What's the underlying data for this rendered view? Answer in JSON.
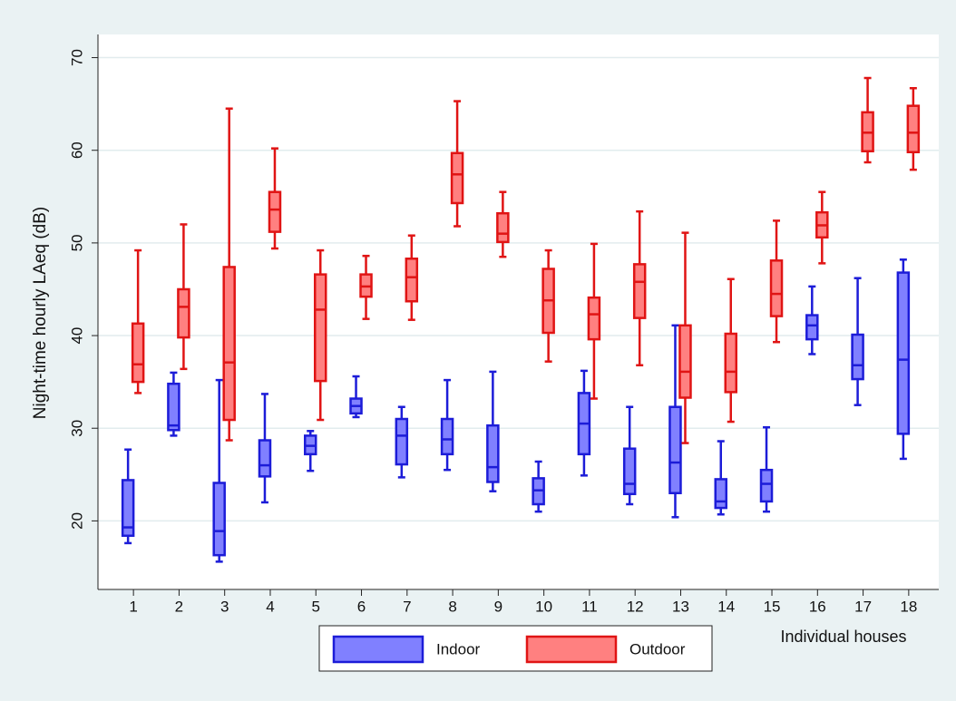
{
  "chart_data": {
    "type": "box",
    "y_label": "Night-time hourly LAeq (dB)",
    "x_label": "Individual houses",
    "categories": [
      "1",
      "2",
      "3",
      "4",
      "5",
      "6",
      "7",
      "8",
      "9",
      "10",
      "11",
      "12",
      "13",
      "14",
      "15",
      "16",
      "17",
      "18"
    ],
    "ylim": [
      12.6,
      72.5
    ],
    "yticks": [
      20,
      30,
      40,
      50,
      60,
      70
    ],
    "grid": true,
    "series": [
      {
        "name": "Indoor",
        "color": "#1c1cd8",
        "fill": "#8080ff",
        "values": [
          {
            "min": 17.6,
            "q1": 18.4,
            "median": 19.3,
            "q3": 24.4,
            "max": 27.7
          },
          {
            "min": 29.2,
            "q1": 29.8,
            "median": 30.3,
            "q3": 34.8,
            "max": 36.0
          },
          {
            "min": 15.6,
            "q1": 16.3,
            "median": 18.9,
            "q3": 24.1,
            "max": 35.2
          },
          {
            "min": 22.0,
            "q1": 24.8,
            "median": 26.0,
            "q3": 28.7,
            "max": 33.7
          },
          {
            "min": 25.4,
            "q1": 27.2,
            "median": 28.1,
            "q3": 29.2,
            "max": 29.7
          },
          {
            "min": 31.2,
            "q1": 31.6,
            "median": 32.4,
            "q3": 33.2,
            "max": 35.6
          },
          {
            "min": 24.7,
            "q1": 26.1,
            "median": 29.2,
            "q3": 31.0,
            "max": 32.3
          },
          {
            "min": 25.5,
            "q1": 27.2,
            "median": 28.8,
            "q3": 31.0,
            "max": 35.2
          },
          {
            "min": 23.2,
            "q1": 24.2,
            "median": 25.8,
            "q3": 30.3,
            "max": 36.1
          },
          {
            "min": 21.0,
            "q1": 21.8,
            "median": 23.3,
            "q3": 24.6,
            "max": 26.4
          },
          {
            "min": 24.9,
            "q1": 27.2,
            "median": 30.5,
            "q3": 33.8,
            "max": 36.2
          },
          {
            "min": 21.8,
            "q1": 22.9,
            "median": 24.0,
            "q3": 27.8,
            "max": 32.3
          },
          {
            "min": 20.4,
            "q1": 23.0,
            "median": 26.3,
            "q3": 32.3,
            "max": 41.1
          },
          {
            "min": 20.7,
            "q1": 21.4,
            "median": 22.1,
            "q3": 24.5,
            "max": 28.6
          },
          {
            "min": 21.0,
            "q1": 22.1,
            "median": 24.0,
            "q3": 25.5,
            "max": 30.1
          },
          {
            "min": 38.0,
            "q1": 39.6,
            "median": 41.1,
            "q3": 42.2,
            "max": 45.3
          },
          {
            "min": 32.5,
            "q1": 35.3,
            "median": 36.8,
            "q3": 40.1,
            "max": 46.2
          },
          {
            "min": 26.7,
            "q1": 29.4,
            "median": 37.4,
            "q3": 46.8,
            "max": 48.2
          }
        ]
      },
      {
        "name": "Outdoor",
        "color": "#e01414",
        "fill": "#ff8080",
        "values": [
          {
            "min": 33.8,
            "q1": 35.0,
            "median": 36.9,
            "q3": 41.3,
            "max": 49.2
          },
          {
            "min": 36.4,
            "q1": 39.8,
            "median": 43.1,
            "q3": 45.0,
            "max": 52.0
          },
          {
            "min": 28.7,
            "q1": 30.9,
            "median": 37.1,
            "q3": 47.4,
            "max": 64.5
          },
          {
            "min": 49.4,
            "q1": 51.2,
            "median": 53.6,
            "q3": 55.5,
            "max": 60.2
          },
          {
            "min": 30.9,
            "q1": 35.1,
            "median": 42.8,
            "q3": 46.6,
            "max": 49.2
          },
          {
            "min": 41.8,
            "q1": 44.2,
            "median": 45.3,
            "q3": 46.6,
            "max": 48.6
          },
          {
            "min": 41.7,
            "q1": 43.7,
            "median": 46.3,
            "q3": 48.3,
            "max": 50.8
          },
          {
            "min": 51.8,
            "q1": 54.3,
            "median": 57.4,
            "q3": 59.7,
            "max": 65.3
          },
          {
            "min": 48.5,
            "q1": 50.1,
            "median": 51.0,
            "q3": 53.2,
            "max": 55.5
          },
          {
            "min": 37.2,
            "q1": 40.3,
            "median": 43.8,
            "q3": 47.2,
            "max": 49.2
          },
          {
            "min": 33.2,
            "q1": 39.6,
            "median": 42.3,
            "q3": 44.1,
            "max": 49.9
          },
          {
            "min": 36.8,
            "q1": 41.9,
            "median": 45.8,
            "q3": 47.7,
            "max": 53.4
          },
          {
            "min": 28.4,
            "q1": 33.3,
            "median": 36.1,
            "q3": 41.1,
            "max": 51.1
          },
          {
            "min": 30.7,
            "q1": 33.9,
            "median": 36.1,
            "q3": 40.2,
            "max": 46.1
          },
          {
            "min": 39.3,
            "q1": 42.1,
            "median": 44.5,
            "q3": 48.1,
            "max": 52.4
          },
          {
            "min": 47.8,
            "q1": 50.6,
            "median": 51.9,
            "q3": 53.3,
            "max": 55.5
          },
          {
            "min": 58.7,
            "q1": 59.9,
            "median": 61.9,
            "q3": 64.1,
            "max": 67.8
          },
          {
            "min": 57.9,
            "q1": 59.8,
            "median": 61.9,
            "q3": 64.8,
            "max": 66.7
          }
        ]
      }
    ]
  }
}
